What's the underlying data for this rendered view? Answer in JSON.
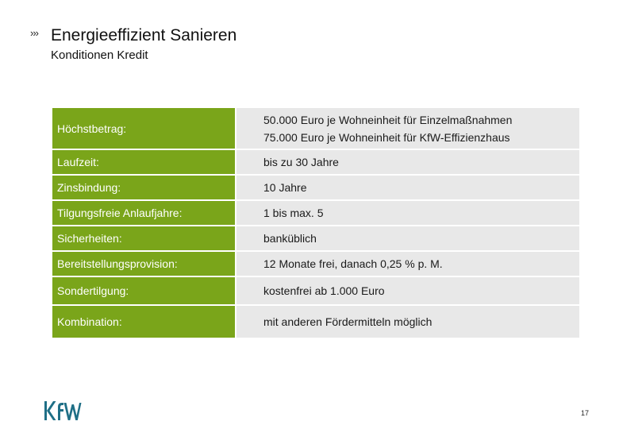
{
  "header": {
    "mark": "›››",
    "title": "Energieeffizient Sanieren",
    "subtitle": "Konditionen Kredit"
  },
  "rows": [
    {
      "label": "Höchstbetrag:",
      "values": [
        "50.000 Euro je Wohneinheit für Einzelmaßnahmen",
        "75.000 Euro je Wohneinheit für KfW-Effizienzhaus"
      ]
    },
    {
      "label": "Laufzeit:",
      "values": [
        "bis zu 30 Jahre"
      ]
    },
    {
      "label": "Zinsbindung:",
      "values": [
        "10 Jahre"
      ]
    },
    {
      "label": "Tilgungsfreie Anlaufjahre:",
      "values": [
        "1 bis max. 5"
      ]
    },
    {
      "label": "Sicherheiten:",
      "values": [
        "banküblich"
      ]
    },
    {
      "label": "Bereitstellungsprovision:",
      "values": [
        "12 Monate frei, danach 0,25 % p. M."
      ]
    },
    {
      "label": "Sondertilgung:",
      "values": [
        "kostenfrei ab 1.000 Euro"
      ]
    },
    {
      "label": "Kombination:",
      "values": [
        "mit anderen Fördermitteln möglich"
      ]
    }
  ],
  "footer": {
    "logo_text": "KfW",
    "page_number": "17"
  },
  "colors": {
    "label_bg": "#7aa51a",
    "value_bg": "#e8e8e8",
    "logo": "#1f6f86"
  }
}
